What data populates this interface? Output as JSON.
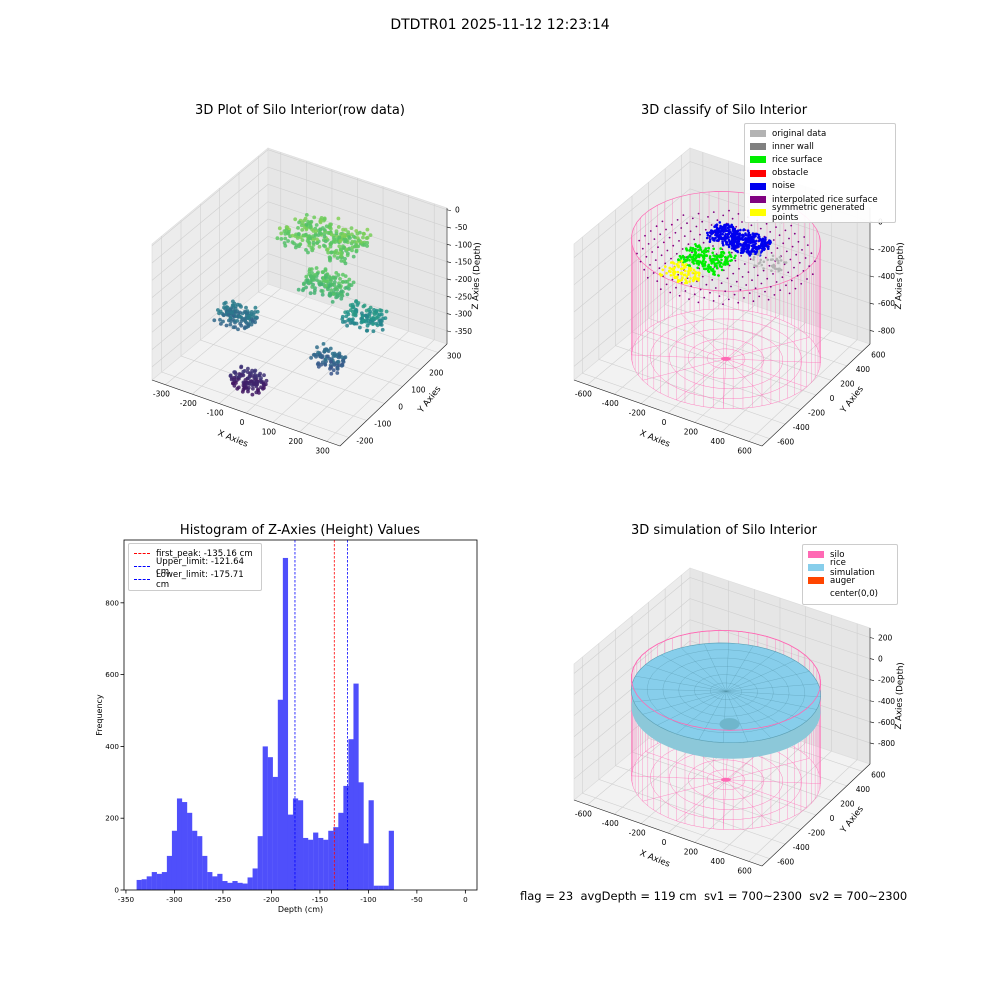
{
  "figure": {
    "title": "DTDTR01 2025-11-12 12:23:14",
    "status": {
      "flag": "flag = 23",
      "avg_depth": "avgDepth = 119 cm",
      "sv1": "sv1 = 700~2300",
      "sv2": "sv2 = 700~2300"
    }
  },
  "chart_data": [
    {
      "type": "scatter",
      "projection": "3d",
      "title": "3D Plot of Silo Interior(row data)",
      "xlabel": "X Axies",
      "ylabel": "Y Axies",
      "zlabel": "Z Axies (Depth)",
      "xticks": [
        "-300",
        "-200",
        "-100",
        "0",
        "100",
        "200",
        "300"
      ],
      "yticks": [
        "-200",
        "-100",
        "0",
        "100",
        "200",
        "300"
      ],
      "zticks": [
        "0",
        "-50",
        "-100",
        "-150",
        "-200",
        "-250",
        "-300",
        "-350"
      ],
      "xlim": [
        -340,
        320
      ],
      "ylim": [
        -240,
        330
      ],
      "zlim": [
        -370,
        10
      ],
      "colormap": "viridis (colored by depth)",
      "clusters": [
        {
          "x": -60,
          "y": 220,
          "z": -110,
          "spread": 120,
          "count": 260
        },
        {
          "x": 60,
          "y": 60,
          "z": -130,
          "spread": 70,
          "count": 140
        },
        {
          "x": -180,
          "y": -40,
          "z": -240,
          "spread": 60,
          "count": 120
        },
        {
          "x": -60,
          "y": -160,
          "z": -330,
          "spread": 50,
          "count": 110
        },
        {
          "x": 180,
          "y": 80,
          "z": -200,
          "spread": 60,
          "count": 110
        },
        {
          "x": 150,
          "y": -60,
          "z": -260,
          "spread": 50,
          "count": 80
        }
      ]
    },
    {
      "type": "scatter",
      "projection": "3d",
      "title": "3D classify of Silo Interior",
      "xlabel": "X Axies",
      "ylabel": "Y Axies",
      "zlabel": "Z Axies (Depth)",
      "xticks": [
        "-600",
        "-400",
        "-200",
        "0",
        "200",
        "400",
        "600"
      ],
      "yticks": [
        "-600",
        "-400",
        "-200",
        "0",
        "200",
        "400",
        "600"
      ],
      "zticks": [
        "0",
        "-200",
        "-400",
        "-600",
        "-800"
      ],
      "xlim": [
        -700,
        700
      ],
      "ylim": [
        -700,
        700
      ],
      "zlim": [
        -1000,
        100
      ],
      "legend": [
        {
          "label": "original data",
          "color": "#b3b3b3"
        },
        {
          "label": "inner wall",
          "color": "#808080"
        },
        {
          "label": "rice surface",
          "color": "#00ee00"
        },
        {
          "label": "obstacle",
          "color": "#ff0000"
        },
        {
          "label": "noise",
          "color": "#0000ee"
        },
        {
          "label": "interpolated rice surface",
          "color": "#800080"
        },
        {
          "label": "symmetric generated points",
          "color": "#ffff00"
        }
      ],
      "silo": {
        "radius": 600,
        "top": 0,
        "bottom": -950,
        "color": "#ff69b4"
      }
    },
    {
      "type": "bar",
      "title": "Histogram of Z-Axies (Height) Values",
      "xlabel": "Depth (cm)",
      "ylabel": "Frequency",
      "xlim": [
        -352,
        12
      ],
      "ylim": [
        0,
        975
      ],
      "xticks": [
        -350,
        -300,
        -250,
        -200,
        -150,
        -100,
        -50,
        0
      ],
      "yticks": [
        0,
        200,
        400,
        600,
        800
      ],
      "bin_start": -339,
      "bin_width": 5.2,
      "color": "#4f4ffb",
      "values": [
        28,
        30,
        38,
        50,
        45,
        50,
        95,
        165,
        255,
        245,
        215,
        165,
        150,
        95,
        50,
        38,
        45,
        25,
        20,
        25,
        20,
        18,
        35,
        60,
        150,
        400,
        370,
        315,
        530,
        925,
        210,
        255,
        250,
        145,
        140,
        160,
        145,
        140,
        165,
        175,
        215,
        290,
        420,
        575,
        300,
        130,
        250,
        12,
        12,
        12,
        165
      ],
      "lines": [
        {
          "label": "first_peak: -135.16 cm",
          "x": -135.16,
          "color": "#ff0000"
        },
        {
          "label": "Upper_limit: -121.64 cm",
          "x": -121.64,
          "color": "#0000ff"
        },
        {
          "label": "Lower_limit: -175.71 cm",
          "x": -175.71,
          "color": "#0000ff"
        }
      ]
    },
    {
      "type": "surface",
      "projection": "3d",
      "title": "3D simulation of Silo Interior",
      "xlabel": "X Axies",
      "ylabel": "Y Axies",
      "zlabel": "Z Axies (Depth)",
      "xticks": [
        "-600",
        "-400",
        "-200",
        "0",
        "200",
        "400",
        "600"
      ],
      "yticks": [
        "-600",
        "-400",
        "-200",
        "0",
        "200",
        "400",
        "600"
      ],
      "zticks": [
        "200",
        "0",
        "-200",
        "-400",
        "-600",
        "-800"
      ],
      "xlim": [
        -700,
        700
      ],
      "ylim": [
        -700,
        700
      ],
      "zlim": [
        -1000,
        300
      ],
      "legend": [
        {
          "label": "silo",
          "color": "#ff69b4"
        },
        {
          "label": "rice simulation",
          "color": "#87ceeb"
        },
        {
          "label": "auger",
          "color": "#ff4500"
        },
        {
          "label": "center(0,0)",
          "color": "#ffffff"
        }
      ],
      "silo": {
        "radius": 600,
        "top": 0,
        "bottom": -950,
        "color": "#ff69b4"
      },
      "rice_surface_depth": -119
    }
  ]
}
